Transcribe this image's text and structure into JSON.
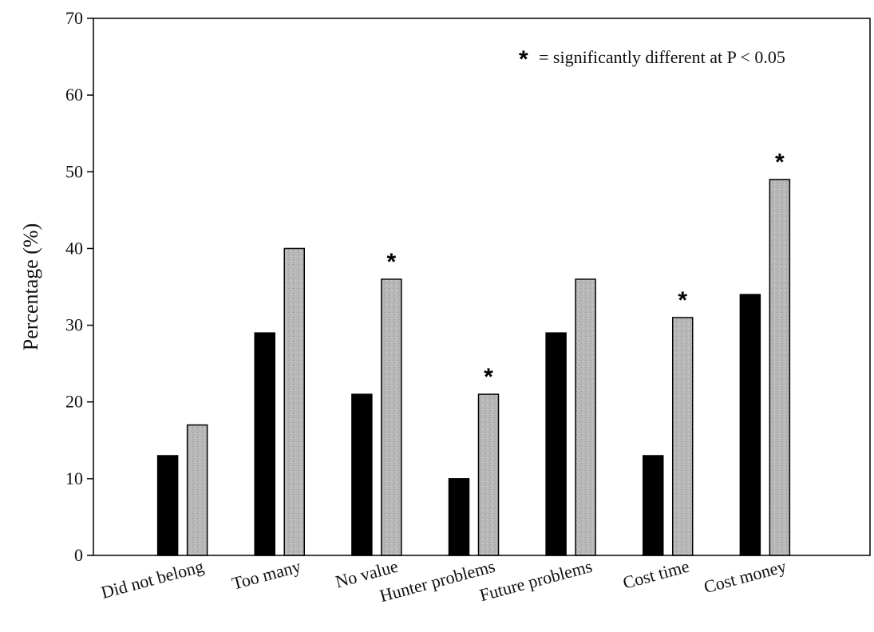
{
  "chart_data": {
    "type": "bar",
    "title": "",
    "xlabel": "",
    "ylabel": "Percentage (%)",
    "ylim": [
      0,
      70
    ],
    "yticks": [
      0,
      10,
      20,
      30,
      40,
      50,
      60,
      70
    ],
    "categories": [
      "Did not belong",
      "Too many",
      "No value",
      "Hunter problems",
      "Future problems",
      "Cost time",
      "Cost money"
    ],
    "series": [
      {
        "values": [
          13,
          29,
          21,
          10,
          29,
          13,
          34
        ],
        "color": "#000000"
      },
      {
        "values": [
          17,
          40,
          36,
          21,
          36,
          31,
          49
        ],
        "color": "#b3b3b3"
      }
    ],
    "significant_categories": [
      "No value",
      "Hunter problems",
      "Cost time",
      "Cost money"
    ],
    "significance_marker": "*",
    "annotation": "= significantly different at P < 0.05",
    "grid": false,
    "legend": "none"
  }
}
